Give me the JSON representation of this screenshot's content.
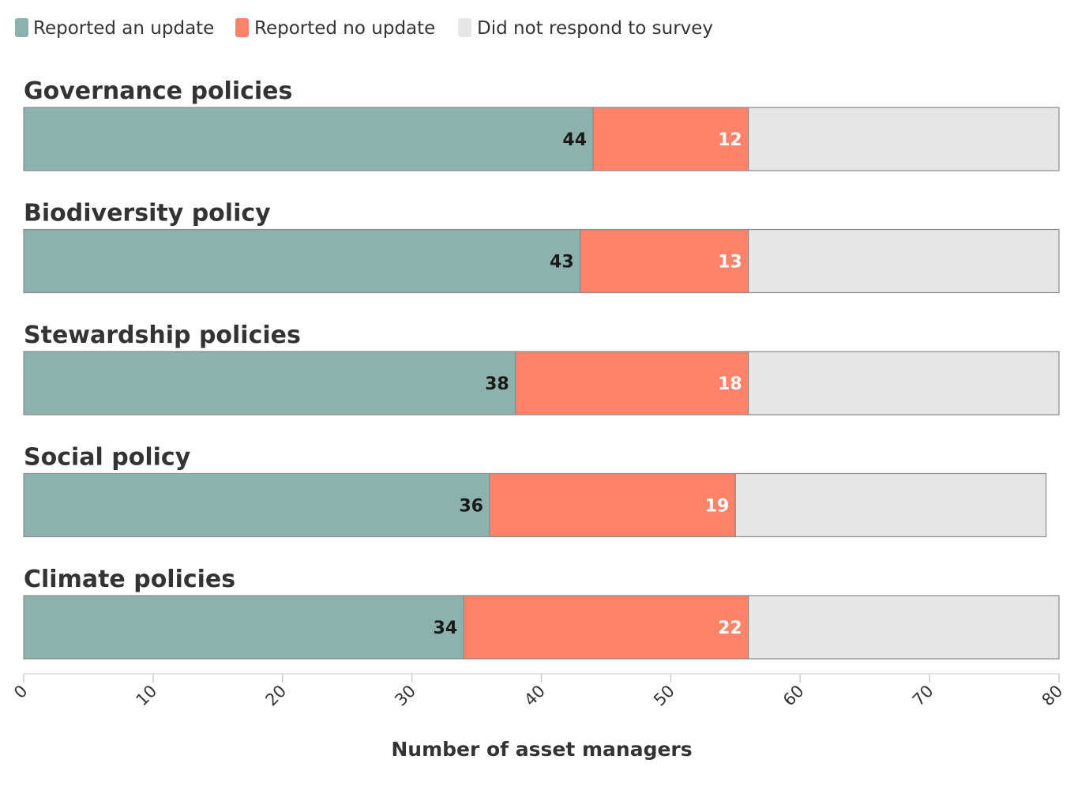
{
  "chart_data": {
    "type": "bar",
    "orientation": "horizontal",
    "stacked": true,
    "title": "",
    "xlabel": "Number of asset managers",
    "ylabel": "",
    "xlim": [
      0,
      80
    ],
    "xticks": [
      "0",
      "10",
      "20",
      "30",
      "40",
      "50",
      "60",
      "70",
      "80"
    ],
    "legend_position": "top-left",
    "categories": [
      "Governance policies",
      "Biodiversity policy",
      "Stewardship policies",
      "Social policy",
      "Climate policies"
    ],
    "series": [
      {
        "name": "Reported an update",
        "color": "#8db2ae",
        "label_color": "#1a1a1a",
        "values": [
          44,
          43,
          38,
          36,
          34
        ],
        "show_labels": true
      },
      {
        "name": "Reported no update",
        "color": "#fd826a",
        "label_color": "#ffffff",
        "values": [
          12,
          13,
          18,
          19,
          22
        ],
        "show_labels": true
      },
      {
        "name": "Did not respond to survey",
        "color": "#e6e6e6",
        "label_color": "#333333",
        "values": [
          24,
          24,
          24,
          24,
          24
        ],
        "show_labels": false
      }
    ]
  }
}
